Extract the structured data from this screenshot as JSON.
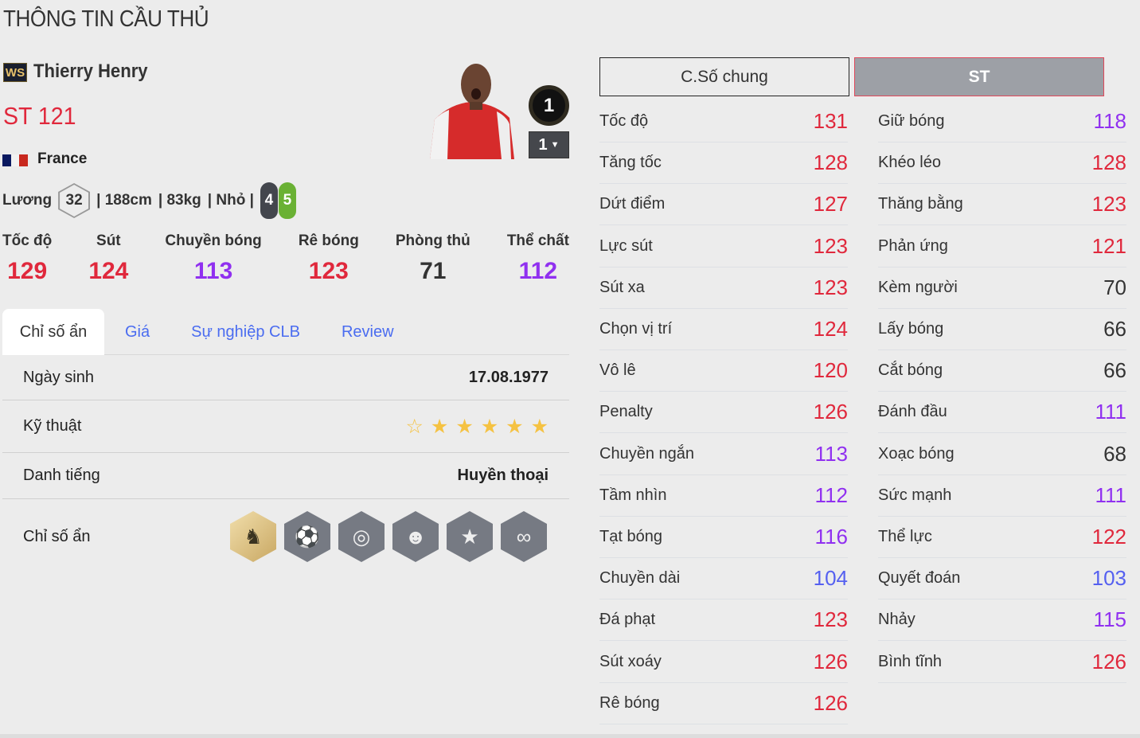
{
  "page_title": "THÔNG TIN CẦU THỦ",
  "player": {
    "season_badge": "WS",
    "name": "Thierry Henry",
    "position_rating": "ST 121",
    "nation": "France",
    "salary_label": "Lương",
    "salary": "32",
    "height": "| 188cm",
    "weight": "| 83kg",
    "body": "| Nhỏ |",
    "weak_foot": "4",
    "strong_foot": "5",
    "rank_badge": "1",
    "upgrade_level": "1"
  },
  "colors": {
    "red": "#e0283c",
    "purple": "#9030f0",
    "blue": "#5560f0",
    "accent_tab": "#4a6cf0"
  },
  "summary": [
    {
      "label": "Tốc độ",
      "value": "129",
      "color": "red"
    },
    {
      "label": "Sút",
      "value": "124",
      "color": "red"
    },
    {
      "label": "Chuyền bóng",
      "value": "113",
      "color": "pur"
    },
    {
      "label": "Rê bóng",
      "value": "123",
      "color": "red"
    },
    {
      "label": "Phòng thủ",
      "value": "71",
      "color": "dk"
    },
    {
      "label": "Thể chất",
      "value": "112",
      "color": "pur"
    }
  ],
  "tabs": [
    "Chỉ số ẩn",
    "Giá",
    "Sự nghiệp CLB",
    "Review"
  ],
  "details": {
    "birth_label": "Ngày sinh",
    "birth_value": "17.08.1977",
    "skill_label": "Kỹ thuật",
    "skill_stars": 5,
    "skill_stars_max": 6,
    "fame_label": "Danh tiếng",
    "fame_value": "Huyền thoại",
    "traits_label": "Chỉ số ẩn",
    "traits": [
      "knight-horse-icon",
      "goal-shot-icon",
      "boot-target-icon",
      "player-head-icon",
      "boot-ball-icon",
      "dribble-path-icon"
    ]
  },
  "stat_tabs": {
    "general": "C.Số chung",
    "position": "ST"
  },
  "stats_left": [
    {
      "label": "Tốc độ",
      "value": "131",
      "color": "red"
    },
    {
      "label": "Tăng tốc",
      "value": "128",
      "color": "red"
    },
    {
      "label": "Dứt điểm",
      "value": "127",
      "color": "red"
    },
    {
      "label": "Lực sút",
      "value": "123",
      "color": "red"
    },
    {
      "label": "Sút xa",
      "value": "123",
      "color": "red"
    },
    {
      "label": "Chọn vị trí",
      "value": "124",
      "color": "red"
    },
    {
      "label": "Vô lê",
      "value": "120",
      "color": "red"
    },
    {
      "label": "Penalty",
      "value": "126",
      "color": "red"
    },
    {
      "label": "Chuyền ngắn",
      "value": "113",
      "color": "pur"
    },
    {
      "label": "Tầm nhìn",
      "value": "112",
      "color": "pur"
    },
    {
      "label": "Tạt bóng",
      "value": "116",
      "color": "pur"
    },
    {
      "label": "Chuyền dài",
      "value": "104",
      "color": "blu"
    },
    {
      "label": "Đá phạt",
      "value": "123",
      "color": "red"
    },
    {
      "label": "Sút xoáy",
      "value": "126",
      "color": "red"
    },
    {
      "label": "Rê bóng",
      "value": "126",
      "color": "red"
    }
  ],
  "stats_right": [
    {
      "label": "Giữ bóng",
      "value": "118",
      "color": "pur"
    },
    {
      "label": "Khéo léo",
      "value": "128",
      "color": "red"
    },
    {
      "label": "Thăng bằng",
      "value": "123",
      "color": "red"
    },
    {
      "label": "Phản ứng",
      "value": "121",
      "color": "red"
    },
    {
      "label": "Kèm người",
      "value": "70",
      "color": "dk"
    },
    {
      "label": "Lấy bóng",
      "value": "66",
      "color": "dk"
    },
    {
      "label": "Cắt bóng",
      "value": "66",
      "color": "dk"
    },
    {
      "label": "Đánh đầu",
      "value": "111",
      "color": "pur"
    },
    {
      "label": "Xoạc bóng",
      "value": "68",
      "color": "dk"
    },
    {
      "label": "Sức mạnh",
      "value": "111",
      "color": "pur"
    },
    {
      "label": "Thể lực",
      "value": "122",
      "color": "red"
    },
    {
      "label": "Quyết đoán",
      "value": "103",
      "color": "blu"
    },
    {
      "label": "Nhảy",
      "value": "115",
      "color": "pur"
    },
    {
      "label": "Bình tĩnh",
      "value": "126",
      "color": "red"
    }
  ]
}
